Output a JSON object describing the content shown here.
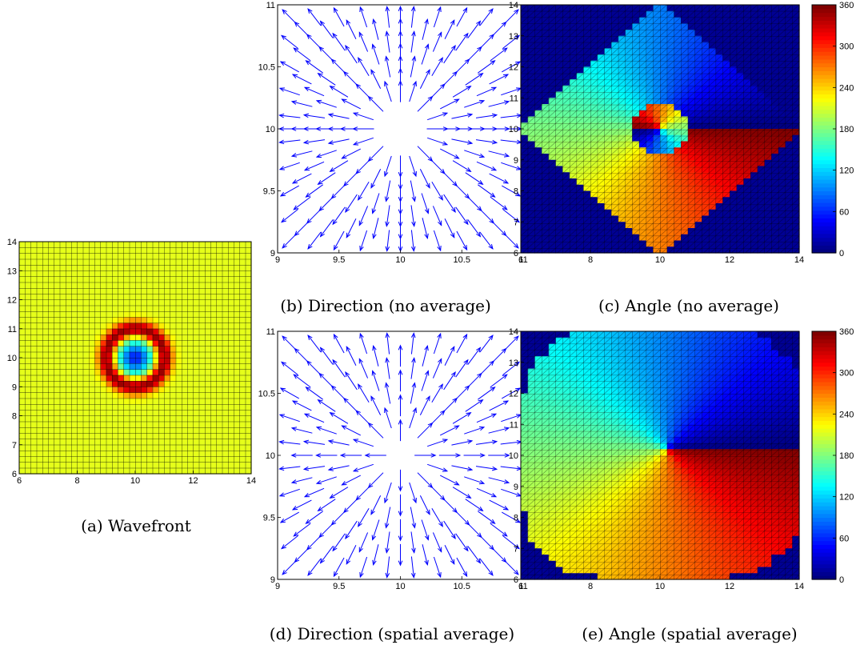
{
  "chart_data": [
    {
      "id": "a",
      "type": "heatmap",
      "caption": "(a) Wavefront",
      "xlim": [
        6,
        14
      ],
      "ylim": [
        6,
        14
      ],
      "xticks": [
        "6",
        "8",
        "10",
        "12",
        "14"
      ],
      "yticks": [
        "6",
        "7",
        "8",
        "9",
        "10",
        "11",
        "12",
        "13",
        "14"
      ],
      "grid_cells": 40,
      "colormap": "jet",
      "description_values": {
        "center": [
          10,
          10
        ],
        "min_radius": 0,
        "ring_radius": 1.0,
        "background_level": 0.6
      }
    },
    {
      "id": "b",
      "type": "quiver",
      "caption": "(b) Direction (no average)",
      "xlim": [
        9,
        11
      ],
      "ylim": [
        9,
        11
      ],
      "xticks": [
        "9",
        "9.5",
        "10",
        "10.5",
        "11"
      ],
      "yticks": [
        "9",
        "9.5",
        "10",
        "10.5",
        "11"
      ],
      "arrow_color": "#0000ff",
      "center": [
        10,
        10
      ],
      "grid_spacing": 0.1
    },
    {
      "id": "c",
      "type": "heatmap",
      "caption": "(c) Angle (no average)",
      "xlim": [
        6,
        14
      ],
      "ylim": [
        6,
        14
      ],
      "xticks": [
        "6",
        "8",
        "10",
        "12",
        "14"
      ],
      "yticks": [
        "6",
        "7",
        "8",
        "9",
        "10",
        "11",
        "12",
        "13",
        "14"
      ],
      "grid_cells": 40,
      "colormap": "jet",
      "colorbar": {
        "min": 0,
        "max": 360,
        "ticks": [
          "0",
          "60",
          "120",
          "180",
          "240",
          "300",
          "360"
        ]
      },
      "center": [
        10,
        10
      ]
    },
    {
      "id": "d",
      "type": "quiver",
      "caption": "(d) Direction (spatial average)",
      "xlim": [
        9,
        11
      ],
      "ylim": [
        9,
        11
      ],
      "xticks": [
        "9",
        "9.5",
        "10",
        "10.5",
        "11"
      ],
      "yticks": [
        "9",
        "9.5",
        "10",
        "10.5",
        "11"
      ],
      "arrow_color": "#0000ff",
      "center": [
        10,
        10
      ],
      "grid_spacing": 0.1
    },
    {
      "id": "e",
      "type": "heatmap",
      "caption": "(e) Angle (spatial average)",
      "xlim": [
        6,
        14
      ],
      "ylim": [
        6,
        14
      ],
      "xticks": [
        "6",
        "8",
        "10",
        "12",
        "14"
      ],
      "yticks": [
        "6",
        "7",
        "8",
        "9",
        "10",
        "11",
        "12",
        "13",
        "14"
      ],
      "grid_cells": 40,
      "colormap": "jet",
      "colorbar": {
        "min": 0,
        "max": 360,
        "ticks": [
          "0",
          "60",
          "120",
          "180",
          "240",
          "300",
          "360"
        ]
      },
      "center": [
        10,
        10
      ]
    }
  ],
  "captions": {
    "a": "(a) Wavefront",
    "b": "(b) Direction (no average)",
    "c": "(c) Angle (no average)",
    "d": "(d) Direction (spatial average)",
    "e": "(e) Angle (spatial average)"
  }
}
